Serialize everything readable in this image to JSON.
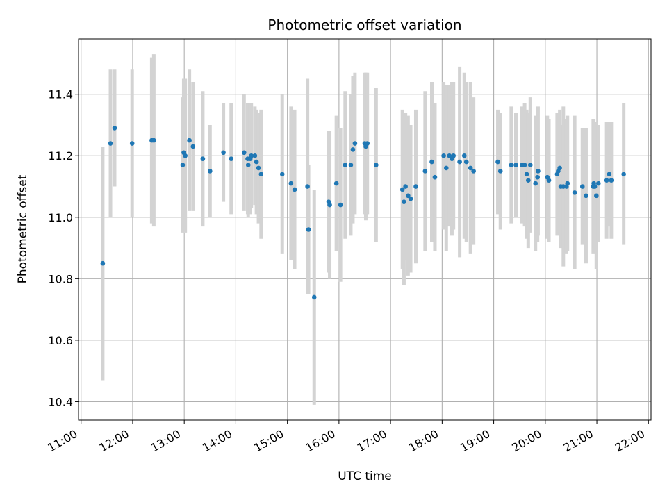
{
  "chart_data": {
    "type": "scatter",
    "title": "Photometric offset variation",
    "xlabel": "UTC time",
    "ylabel": "Photometric offset",
    "x_unit": "hours UTC",
    "xlim": [
      10.95,
      22.05
    ],
    "ylim": [
      10.34,
      11.58
    ],
    "grid": true,
    "x_ticks": [
      {
        "value": 11,
        "label": "11:00"
      },
      {
        "value": 12,
        "label": "12:00"
      },
      {
        "value": 13,
        "label": "13:00"
      },
      {
        "value": 14,
        "label": "14:00"
      },
      {
        "value": 15,
        "label": "15:00"
      },
      {
        "value": 16,
        "label": "16:00"
      },
      {
        "value": 17,
        "label": "17:00"
      },
      {
        "value": 18,
        "label": "18:00"
      },
      {
        "value": 19,
        "label": "19:00"
      },
      {
        "value": 20,
        "label": "20:00"
      },
      {
        "value": 21,
        "label": "21:00"
      },
      {
        "value": 22,
        "label": "22:00"
      }
    ],
    "y_ticks": [
      {
        "value": 10.4,
        "label": "10.4"
      },
      {
        "value": 10.6,
        "label": "10.6"
      },
      {
        "value": 10.8,
        "label": "10.8"
      },
      {
        "value": 11.0,
        "label": "11.0"
      },
      {
        "value": 11.2,
        "label": "11.2"
      },
      {
        "value": 11.4,
        "label": "11.4"
      }
    ],
    "colors": {
      "point": "#1f77b4",
      "errorbar": "#d3d3d3",
      "grid": "#b0b0b0"
    },
    "points": [
      [
        11.42,
        10.85,
        0.38
      ],
      [
        11.57,
        11.24,
        0.24
      ],
      [
        11.65,
        11.29,
        0.19
      ],
      [
        11.99,
        11.24,
        0.24
      ],
      [
        12.37,
        11.25,
        0.27
      ],
      [
        12.41,
        11.25,
        0.28
      ],
      [
        12.97,
        11.17,
        0.22
      ],
      [
        12.99,
        11.21,
        0.24
      ],
      [
        13.02,
        11.2,
        0.25
      ],
      [
        13.1,
        11.25,
        0.23
      ],
      [
        13.17,
        11.23,
        0.21
      ],
      [
        13.36,
        11.19,
        0.22
      ],
      [
        13.5,
        11.15,
        0.15
      ],
      [
        13.76,
        11.21,
        0.16
      ],
      [
        13.91,
        11.19,
        0.18
      ],
      [
        14.16,
        11.21,
        0.19
      ],
      [
        14.23,
        11.19,
        0.18
      ],
      [
        14.24,
        11.17,
        0.17
      ],
      [
        14.28,
        11.19,
        0.18
      ],
      [
        14.3,
        11.2,
        0.17
      ],
      [
        14.37,
        11.2,
        0.16
      ],
      [
        14.4,
        11.18,
        0.17
      ],
      [
        14.44,
        11.16,
        0.18
      ],
      [
        14.49,
        11.14,
        0.21
      ],
      [
        14.9,
        11.14,
        0.26
      ],
      [
        15.07,
        11.11,
        0.25
      ],
      [
        15.14,
        11.09,
        0.26
      ],
      [
        15.39,
        11.1,
        0.35
      ],
      [
        15.41,
        10.96,
        0.21
      ],
      [
        15.52,
        10.74,
        0.35
      ],
      [
        15.8,
        11.05,
        0.23
      ],
      [
        15.82,
        11.04,
        0.24
      ],
      [
        15.95,
        11.11,
        0.22
      ],
      [
        16.03,
        11.04,
        0.25
      ],
      [
        16.12,
        11.17,
        0.24
      ],
      [
        16.23,
        11.17,
        0.23
      ],
      [
        16.27,
        11.22,
        0.24
      ],
      [
        16.31,
        11.24,
        0.23
      ],
      [
        16.5,
        11.24,
        0.23
      ],
      [
        16.52,
        11.23,
        0.24
      ],
      [
        16.55,
        11.24,
        0.23
      ],
      [
        16.72,
        11.17,
        0.25
      ],
      [
        17.23,
        11.09,
        0.26
      ],
      [
        17.26,
        11.05,
        0.27
      ],
      [
        17.29,
        11.1,
        0.24
      ],
      [
        17.34,
        11.07,
        0.26
      ],
      [
        17.39,
        11.06,
        0.24
      ],
      [
        17.49,
        11.1,
        0.25
      ],
      [
        17.67,
        11.15,
        0.26
      ],
      [
        17.8,
        11.18,
        0.26
      ],
      [
        17.86,
        11.13,
        0.24
      ],
      [
        18.03,
        11.2,
        0.24
      ],
      [
        18.08,
        11.16,
        0.27
      ],
      [
        18.14,
        11.2,
        0.23
      ],
      [
        18.19,
        11.19,
        0.25
      ],
      [
        18.22,
        11.2,
        0.24
      ],
      [
        18.34,
        11.18,
        0.31
      ],
      [
        18.43,
        11.2,
        0.27
      ],
      [
        18.47,
        11.18,
        0.26
      ],
      [
        18.55,
        11.16,
        0.28
      ],
      [
        18.61,
        11.15,
        0.24
      ],
      [
        19.08,
        11.18,
        0.17
      ],
      [
        19.13,
        11.15,
        0.19
      ],
      [
        19.34,
        11.17,
        0.19
      ],
      [
        19.43,
        11.17,
        0.17
      ],
      [
        19.55,
        11.17,
        0.19
      ],
      [
        19.6,
        11.17,
        0.2
      ],
      [
        19.64,
        11.14,
        0.21
      ],
      [
        19.67,
        11.12,
        0.22
      ],
      [
        19.71,
        11.17,
        0.22
      ],
      [
        19.81,
        11.11,
        0.22
      ],
      [
        19.85,
        11.13,
        0.21
      ],
      [
        19.86,
        11.15,
        0.21
      ],
      [
        20.04,
        11.13,
        0.2
      ],
      [
        20.07,
        11.12,
        0.2
      ],
      [
        20.23,
        11.14,
        0.2
      ],
      [
        20.25,
        11.15,
        0.19
      ],
      [
        20.28,
        11.16,
        0.19
      ],
      [
        20.3,
        11.1,
        0.2
      ],
      [
        20.35,
        11.1,
        0.26
      ],
      [
        20.41,
        11.1,
        0.22
      ],
      [
        20.43,
        11.11,
        0.22
      ],
      [
        20.57,
        11.08,
        0.25
      ],
      [
        20.72,
        11.1,
        0.19
      ],
      [
        20.79,
        11.07,
        0.22
      ],
      [
        20.93,
        11.1,
        0.22
      ],
      [
        20.94,
        11.11,
        0.21
      ],
      [
        20.96,
        11.1,
        0.21
      ],
      [
        20.99,
        11.07,
        0.24
      ],
      [
        21.03,
        11.11,
        0.19
      ],
      [
        21.19,
        11.12,
        0.19
      ],
      [
        21.24,
        11.14,
        0.17
      ],
      [
        21.28,
        11.12,
        0.19
      ],
      [
        21.52,
        11.14,
        0.23
      ]
    ]
  }
}
